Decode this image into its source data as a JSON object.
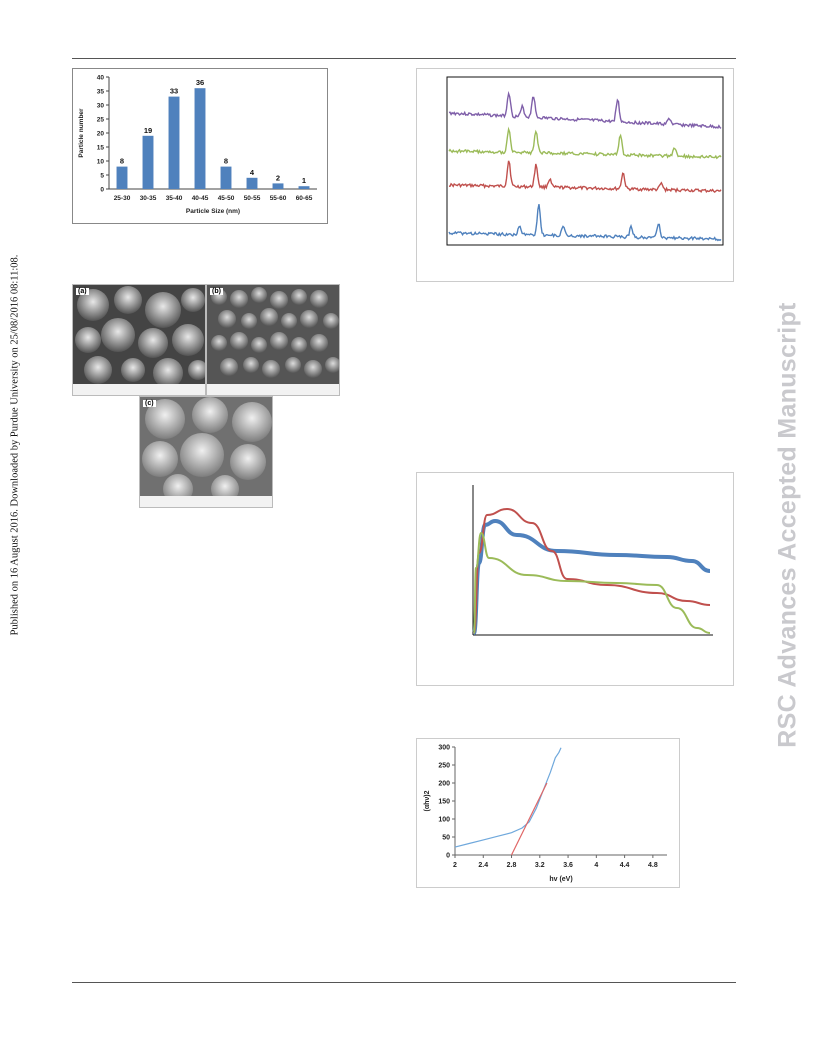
{
  "sidebar_left": "Published on 16 August 2016. Downloaded by Purdue University on 25/08/2016 08:11:08.",
  "sidebar_right": "RSC Advances Accepted Manuscript",
  "chart_data": [
    {
      "type": "bar",
      "title": "",
      "xlabel": "Particle Size (nm)",
      "ylabel": "Particle number",
      "categories": [
        "25-30",
        "30-35",
        "35-40",
        "40-45",
        "45-50",
        "50-55",
        "55-60",
        "60-65"
      ],
      "values": [
        8,
        19,
        33,
        36,
        8,
        4,
        2,
        1
      ],
      "data_labels": [
        "8",
        "19",
        "33",
        "36",
        "8",
        "4",
        "2",
        "1"
      ],
      "ylim": [
        0,
        40
      ],
      "yticks": [
        "0",
        "5",
        "10",
        "15",
        "20",
        "25",
        "30",
        "35",
        "40"
      ],
      "color": "#4f81bd"
    },
    {
      "type": "line",
      "title": "",
      "xlabel": "",
      "ylabel": "",
      "series": [
        {
          "color": "#7f5fa9"
        },
        {
          "color": "#9bbb59"
        },
        {
          "color": "#c0504d"
        },
        {
          "color": "#4f81bd"
        }
      ]
    },
    {
      "type": "line",
      "title": "",
      "xlabel": "",
      "ylabel": "",
      "series": [
        {
          "color": "#4f81bd"
        },
        {
          "color": "#c0504d"
        },
        {
          "color": "#9bbb59"
        }
      ]
    },
    {
      "type": "line",
      "title": "",
      "xlabel": "hv (eV)",
      "ylabel": "(αhν)2",
      "xlim": [
        2,
        5
      ],
      "ylim": [
        0,
        300
      ],
      "xticks": [
        "2",
        "2.4",
        "2.8",
        "3.2",
        "3.6",
        "4",
        "4.4",
        "4.8"
      ],
      "yticks": [
        "0",
        "50",
        "100",
        "150",
        "200",
        "250",
        "300"
      ],
      "series": [
        {
          "color": "#6fa8dc",
          "x": [
            2.0,
            2.2,
            2.4,
            2.6,
            2.8,
            2.95,
            3.05,
            3.15,
            3.25,
            3.35,
            3.42,
            3.47,
            3.5
          ],
          "y": [
            22,
            32,
            42,
            52,
            62,
            75,
            92,
            130,
            180,
            230,
            270,
            285,
            298
          ]
        },
        {
          "color": "#e06666",
          "x": [
            2.8,
            3.3
          ],
          "y": [
            0,
            200
          ]
        }
      ]
    }
  ],
  "sem": {
    "labels": [
      "(a)",
      "(b)",
      "(c)"
    ]
  }
}
